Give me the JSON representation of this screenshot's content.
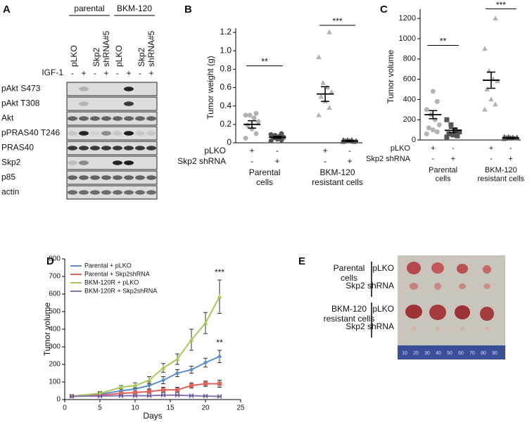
{
  "panel_a": {
    "letter": "A",
    "groups": [
      "parental",
      "BKM-120"
    ],
    "lanes": [
      "pLKO",
      "Skp2 shRNA#5",
      "pLKO",
      "Skp2 shRNA#5"
    ],
    "treatment_label": "IGF-1",
    "treatment": [
      "-",
      "+",
      "-",
      "+",
      "-",
      "+",
      "-",
      "+"
    ],
    "blots": [
      "pAkt S473",
      "pAkt T308",
      "Akt",
      "pPRAS40 T246",
      "PRAS40",
      "Skp2",
      "p85",
      "actin"
    ]
  },
  "chart_data": [
    {
      "type": "dot",
      "panel": "B",
      "ylabel": "Tumor weight (g)",
      "ylim": [
        0,
        1.2
      ],
      "yticks": [
        0,
        0.2,
        0.4,
        0.6,
        0.8,
        {
          "value": 1,
          "label": "1.0"
        },
        1.2
      ],
      "groups": [
        {
          "marker": "circle",
          "color": "#b3b3b3",
          "values": [
            0.05,
            0.1,
            0.15,
            0.19,
            0.23,
            0.27,
            0.3,
            0.3,
            0.32
          ],
          "mean": 0.2,
          "sem": 0.04
        },
        {
          "marker": "circle",
          "color": "#555555",
          "values": [
            0.02,
            0.03,
            0.04,
            0.05,
            0.06,
            0.07,
            0.08,
            0.09,
            0.1
          ],
          "mean": 0.06,
          "sem": 0.01
        },
        {
          "marker": "triangle",
          "color": "#b3b3b3",
          "values": [
            0.3,
            0.38,
            0.45,
            0.5,
            0.55,
            0.6,
            0.65,
            0.93,
            1.2
          ],
          "mean": 0.53,
          "sem": 0.08
        },
        {
          "marker": "triangle",
          "color": "#555555",
          "values": [
            0.01,
            0.01,
            0.02,
            0.02,
            0.02,
            0.03,
            0.03,
            0.03
          ],
          "mean": 0.02,
          "sem": 0.005
        }
      ],
      "rows": [
        {
          "label": "pLKO",
          "marks": [
            "+",
            "-",
            "+",
            "-"
          ]
        },
        {
          "label": "Skp2 shRNA",
          "marks": [
            "-",
            "+",
            "-",
            "+"
          ]
        }
      ],
      "group_labels": [
        {
          "label": "Parental cells",
          "groups": [
            0,
            1
          ]
        },
        {
          "label": "BKM-120 resistant cells",
          "groups": [
            2,
            3
          ]
        }
      ],
      "significance": [
        {
          "label": "**",
          "groups": [
            0,
            1
          ]
        },
        {
          "label": "***",
          "groups": [
            2,
            3
          ]
        }
      ]
    },
    {
      "type": "dot",
      "panel": "C",
      "ylabel": "Tumor volume",
      "ylim": [
        0,
        1250
      ],
      "yticks": [
        0,
        200,
        400,
        600,
        800,
        1000,
        1200
      ],
      "groups": [
        {
          "marker": "circle",
          "color": "#b3b3b3",
          "values": [
            60,
            80,
            100,
            120,
            150,
            200,
            250,
            300,
            380,
            480
          ],
          "mean": 250,
          "sem": 40
        },
        {
          "marker": "square",
          "color": "#555555",
          "values": [
            30,
            40,
            50,
            60,
            80,
            100,
            150,
            200
          ],
          "mean": 95,
          "sem": 22
        },
        {
          "marker": "triangle",
          "color": "#b3b3b3",
          "values": [
            300,
            350,
            400,
            500,
            580,
            600,
            680,
            900,
            1200
          ],
          "mean": 590,
          "sem": 80
        },
        {
          "marker": "triangle",
          "color": "#555555",
          "values": [
            10,
            15,
            20,
            20,
            25,
            25,
            30,
            30
          ],
          "mean": 20,
          "sem": 4
        }
      ],
      "rows": [
        {
          "label": "pLKO",
          "marks": [
            "+",
            "-",
            "+",
            "-"
          ]
        },
        {
          "label": "Skp2 shRNA",
          "marks": [
            "-",
            "+",
            "-",
            "+"
          ]
        }
      ],
      "group_labels": [
        {
          "label": "Parental cells",
          "groups": [
            0,
            1
          ]
        },
        {
          "label": "BKM-120 resistant cells",
          "groups": [
            2,
            3
          ]
        }
      ],
      "significance": [
        {
          "label": "**",
          "groups": [
            0,
            1
          ]
        },
        {
          "label": "***",
          "groups": [
            2,
            3
          ]
        }
      ]
    },
    {
      "type": "line",
      "panel": "D",
      "xlabel": "Days",
      "ylabel": "Tumor volume",
      "x": [
        1,
        5,
        8,
        10,
        12,
        14,
        16,
        18,
        20,
        22
      ],
      "xlim": [
        0,
        25
      ],
      "xticks": [
        0,
        5,
        10,
        15,
        20,
        25
      ],
      "ylim": [
        0,
        800
      ],
      "yticks": [
        0,
        100,
        200,
        300,
        400,
        500,
        600,
        700,
        800
      ],
      "legend": "upper left",
      "series": [
        {
          "name": "Parental + pLKO",
          "color": "#5b8fc9",
          "marker": "diamond",
          "values": [
            20,
            30,
            50,
            60,
            80,
            110,
            150,
            170,
            210,
            245
          ],
          "errors": [
            5,
            10,
            10,
            15,
            20,
            20,
            20,
            20,
            25,
            35
          ]
        },
        {
          "name": "Parental + Skp2shRNA",
          "color": "#e0625b",
          "marker": "square",
          "values": [
            20,
            25,
            35,
            40,
            45,
            55,
            55,
            80,
            90,
            90
          ],
          "errors": [
            5,
            5,
            10,
            10,
            10,
            15,
            15,
            15,
            15,
            20
          ]
        },
        {
          "name": "BKM-120R + pLKO",
          "color": "#a7c95a",
          "marker": "triangle",
          "values": [
            20,
            35,
            70,
            80,
            110,
            180,
            230,
            340,
            435,
            585
          ],
          "errors": [
            5,
            10,
            10,
            15,
            20,
            25,
            30,
            60,
            60,
            95
          ]
        },
        {
          "name": "BKM-120R + Skp2shRNA",
          "color": "#8a72b5",
          "marker": "x",
          "values": [
            18,
            20,
            22,
            22,
            22,
            25,
            25,
            22,
            20,
            18
          ],
          "errors": [
            3,
            3,
            3,
            3,
            3,
            3,
            3,
            3,
            3,
            3
          ]
        }
      ],
      "annotations": [
        {
          "label": "***",
          "series": 2
        },
        {
          "label": "**",
          "series": 0
        }
      ]
    }
  ],
  "panel_e": {
    "letter": "E",
    "groups": [
      {
        "label": "Parental cells",
        "rows": [
          "pLKO",
          "Skp2 shRNA"
        ]
      },
      {
        "label": "BKM-120 resistant cells",
        "rows": [
          "pLKO",
          "Skp2 shRNA"
        ]
      }
    ],
    "ruler": [
      10,
      20,
      30,
      40,
      50,
      60,
      70,
      80,
      90
    ]
  }
}
